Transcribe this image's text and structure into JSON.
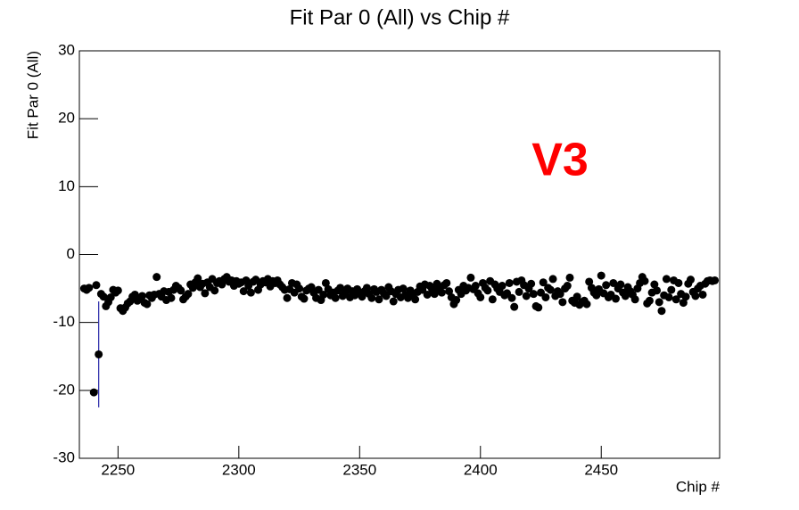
{
  "chart_data": {
    "type": "scatter",
    "title": "Fit Par 0 (All) vs Chip #",
    "x_label": "Chip #",
    "y_label": "Fit Par 0 (All)",
    "annotation": "V3",
    "annotation_color": "#ff0000",
    "color": "#000000",
    "xlim": [
      2234,
      2499
    ],
    "ylim": [
      -30,
      30
    ],
    "xticks": [
      2250,
      2300,
      2350,
      2400,
      2450
    ],
    "yticks": [
      -30,
      -20,
      -10,
      0,
      10,
      20,
      30
    ],
    "grid": false,
    "x": [
      2236,
      2237,
      2238,
      2239,
      2240,
      2241,
      2242,
      2243,
      2244,
      2245,
      2246,
      2247,
      2248,
      2249,
      2250,
      2251,
      2252,
      2253,
      2254,
      2255,
      2256,
      2257,
      2258,
      2259,
      2260,
      2261,
      2262,
      2263,
      2264,
      2265,
      2266,
      2267,
      2268,
      2269,
      2270,
      2271,
      2272,
      2273,
      2274,
      2275,
      2276,
      2277,
      2278,
      2279,
      2280,
      2281,
      2282,
      2283,
      2284,
      2285,
      2286,
      2287,
      2288,
      2289,
      2290,
      2291,
      2292,
      2293,
      2294,
      2295,
      2296,
      2297,
      2298,
      2299,
      2300,
      2301,
      2302,
      2303,
      2304,
      2305,
      2306,
      2307,
      2308,
      2309,
      2310,
      2311,
      2312,
      2313,
      2314,
      2315,
      2316,
      2317,
      2318,
      2319,
      2320,
      2321,
      2322,
      2323,
      2324,
      2325,
      2326,
      2327,
      2328,
      2329,
      2330,
      2331,
      2332,
      2333,
      2334,
      2335,
      2336,
      2337,
      2338,
      2339,
      2340,
      2341,
      2342,
      2343,
      2344,
      2345,
      2346,
      2347,
      2348,
      2349,
      2350,
      2351,
      2352,
      2353,
      2354,
      2355,
      2356,
      2357,
      2358,
      2359,
      2360,
      2361,
      2362,
      2363,
      2364,
      2365,
      2366,
      2367,
      2368,
      2369,
      2370,
      2371,
      2372,
      2373,
      2374,
      2375,
      2376,
      2377,
      2378,
      2379,
      2380,
      2381,
      2382,
      2383,
      2384,
      2385,
      2386,
      2387,
      2388,
      2389,
      2390,
      2391,
      2392,
      2393,
      2394,
      2395,
      2396,
      2397,
      2398,
      2399,
      2400,
      2401,
      2402,
      2403,
      2404,
      2405,
      2406,
      2407,
      2408,
      2409,
      2410,
      2411,
      2412,
      2413,
      2414,
      2415,
      2416,
      2417,
      2418,
      2419,
      2420,
      2421,
      2422,
      2423,
      2424,
      2425,
      2426,
      2427,
      2428,
      2429,
      2430,
      2431,
      2432,
      2433,
      2434,
      2435,
      2436,
      2437,
      2438,
      2439,
      2440,
      2441,
      2442,
      2443,
      2444,
      2445,
      2446,
      2447,
      2448,
      2449,
      2450,
      2451,
      2452,
      2453,
      2454,
      2455,
      2456,
      2457,
      2458,
      2459,
      2460,
      2461,
      2462,
      2463,
      2464,
      2465,
      2466,
      2467,
      2468,
      2469,
      2470,
      2471,
      2472,
      2473,
      2474,
      2475,
      2476,
      2477,
      2478,
      2479,
      2480,
      2481,
      2482,
      2483,
      2484,
      2485,
      2486,
      2487,
      2488,
      2489,
      2490,
      2491,
      2492,
      2493,
      2494,
      2495,
      2496,
      2497
    ],
    "values": [
      -5.0,
      -5.2,
      -4.9,
      null,
      -20.3,
      -4.5,
      null,
      -5.8,
      -6.2,
      -7.6,
      -7.0,
      -6.3,
      -5.2,
      -5.6,
      -5.3,
      -7.9,
      -8.3,
      -7.8,
      -7.2,
      -6.9,
      -6.2,
      -5.9,
      -6.8,
      -6.5,
      -6.1,
      -7.1,
      -7.3,
      -6.0,
      -6.4,
      -5.9,
      -3.3,
      -5.8,
      -6.2,
      -5.4,
      -6.7,
      -5.5,
      -6.4,
      -5.2,
      -4.6,
      -4.9,
      -5.3,
      -6.6,
      -6.2,
      -5.8,
      -4.4,
      -4.9,
      -4.1,
      -3.5,
      -4.8,
      -4.3,
      -5.7,
      -4.1,
      -4.8,
      -3.6,
      -5.3,
      -4.2,
      -3.9,
      -4.4,
      -3.6,
      -3.3,
      -4.0,
      -3.8,
      -4.6,
      -3.9,
      -4.3,
      -4.1,
      -5.4,
      -3.8,
      -4.6,
      -5.6,
      -4.0,
      -3.7,
      -5.2,
      -4.4,
      -3.9,
      -4.1,
      -3.6,
      -4.7,
      -3.9,
      -4.2,
      -3.8,
      -4.4,
      -4.8,
      -5.2,
      -6.4,
      -5.1,
      -4.2,
      -5.6,
      -4.4,
      -5.0,
      -6.2,
      -6.5,
      -5.3,
      -5.0,
      -4.8,
      -5.6,
      -6.4,
      -5.2,
      -6.7,
      -5.9,
      -4.2,
      -5.1,
      -6.0,
      -5.6,
      -6.4,
      -5.3,
      -4.9,
      -6.1,
      -5.7,
      -5.0,
      -6.3,
      -5.4,
      -6.0,
      -5.1,
      -5.6,
      -6.2,
      -5.4,
      -4.9,
      -5.8,
      -6.4,
      -5.1,
      -5.5,
      -6.6,
      -5.2,
      -5.7,
      -6.1,
      -4.8,
      -5.4,
      -6.9,
      -5.8,
      -5.2,
      -6.3,
      -5.0,
      -5.9,
      -6.4,
      -5.3,
      -6.0,
      -6.6,
      -5.5,
      -4.7,
      -5.2,
      -4.4,
      -5.9,
      -4.6,
      -5.1,
      -5.8,
      -4.3,
      -5.0,
      -5.6,
      -4.5,
      -4.2,
      -5.4,
      -6.3,
      -7.3,
      -6.7,
      -5.2,
      -5.8,
      -4.6,
      -5.3,
      -4.9,
      -3.4,
      -5.1,
      -4.6,
      -5.7,
      -6.3,
      -4.2,
      -4.9,
      -5.3,
      -3.9,
      -6.6,
      -4.4,
      -5.0,
      -5.5,
      -4.6,
      -6.0,
      -5.7,
      -4.2,
      -6.4,
      -7.7,
      -4.0,
      -5.5,
      -3.8,
      -4.5,
      -6.1,
      -5.0,
      -4.3,
      -5.8,
      -7.6,
      -7.8,
      -5.6,
      -4.1,
      -6.3,
      -4.9,
      -5.2,
      -3.6,
      -6.1,
      -5.4,
      -5.8,
      -7.0,
      -5.0,
      -4.6,
      -3.4,
      -6.8,
      -7.1,
      -6.2,
      -7.4,
      -7.0,
      -6.8,
      -7.3,
      -4.0,
      -4.9,
      -5.6,
      -6.0,
      -5.1,
      -3.1,
      -5.7,
      -4.5,
      -6.3,
      -5.9,
      -4.2,
      -6.5,
      -5.0,
      -4.4,
      -5.6,
      -6.1,
      -4.8,
      -5.4,
      -5.9,
      -6.6,
      -5.0,
      -4.2,
      -3.3,
      -3.9,
      -7.2,
      -6.8,
      -5.6,
      -4.4,
      -5.3,
      -7.0,
      -8.3,
      -6.0,
      -3.6,
      -6.3,
      -5.2,
      -3.8,
      -6.6,
      -4.2,
      -5.8,
      -7.1,
      -6.2,
      -4.3,
      -3.7,
      -5.5,
      -6.1,
      -5.0,
      -4.6,
      -5.9,
      -4.3,
      -3.9,
      -3.8,
      -3.9,
      -3.8
    ],
    "error_bars": {
      "x": [
        2242
      ],
      "values": [
        -14.7
      ],
      "errors": [
        7.8
      ],
      "color": "#2626a8"
    }
  }
}
